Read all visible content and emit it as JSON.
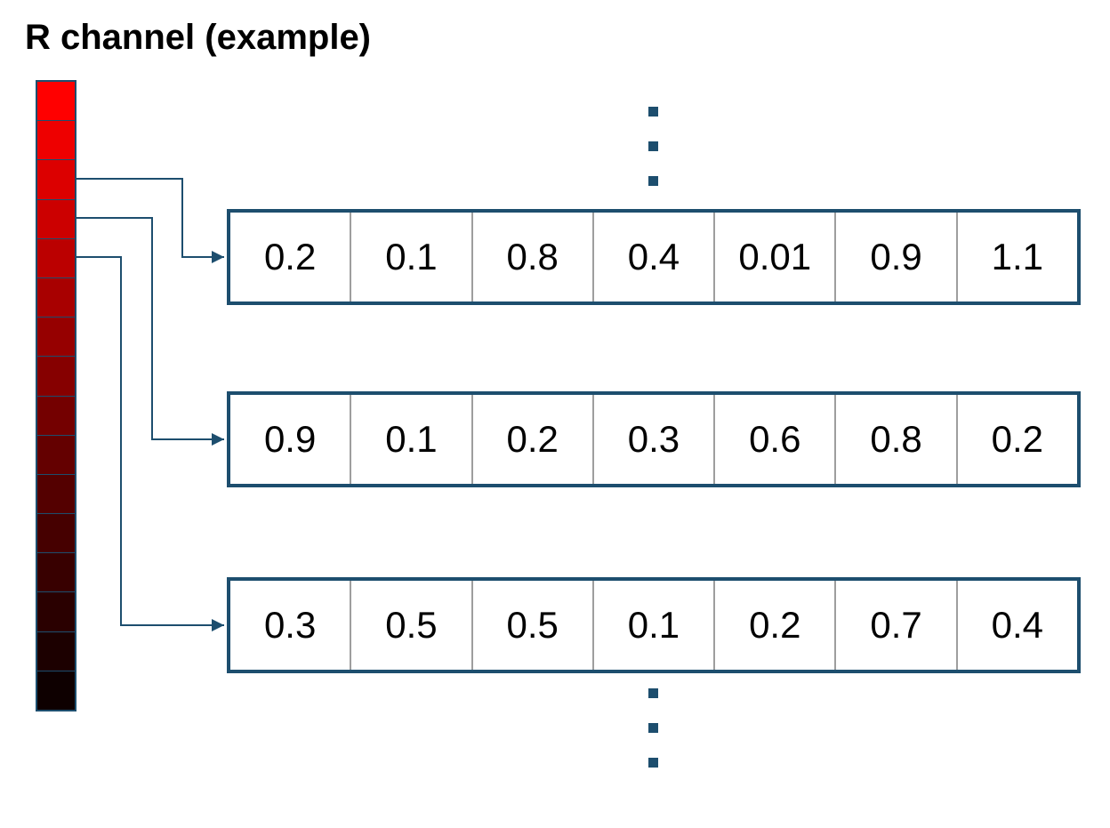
{
  "title": "R channel (example)",
  "colors": {
    "accent": "#1d4e6e",
    "cell_divider": "#9e9e9e",
    "channel_gradient": [
      "#ff0000",
      "#ee0000",
      "#dc0000",
      "#cc0000",
      "#bb0000",
      "#a80000",
      "#960000",
      "#860000",
      "#740000",
      "#640000",
      "#540000",
      "#460000",
      "#380000",
      "#2a0000",
      "#1c0000",
      "#0e0000"
    ]
  },
  "vectors": [
    {
      "values": [
        "0.2",
        "0.1",
        "0.8",
        "0.4",
        "0.01",
        "0.9",
        "1.1"
      ]
    },
    {
      "values": [
        "0.9",
        "0.1",
        "0.2",
        "0.3",
        "0.6",
        "0.8",
        "0.2"
      ]
    },
    {
      "values": [
        "0.3",
        "0.5",
        "0.5",
        "0.1",
        "0.2",
        "0.7",
        "0.4"
      ]
    }
  ]
}
